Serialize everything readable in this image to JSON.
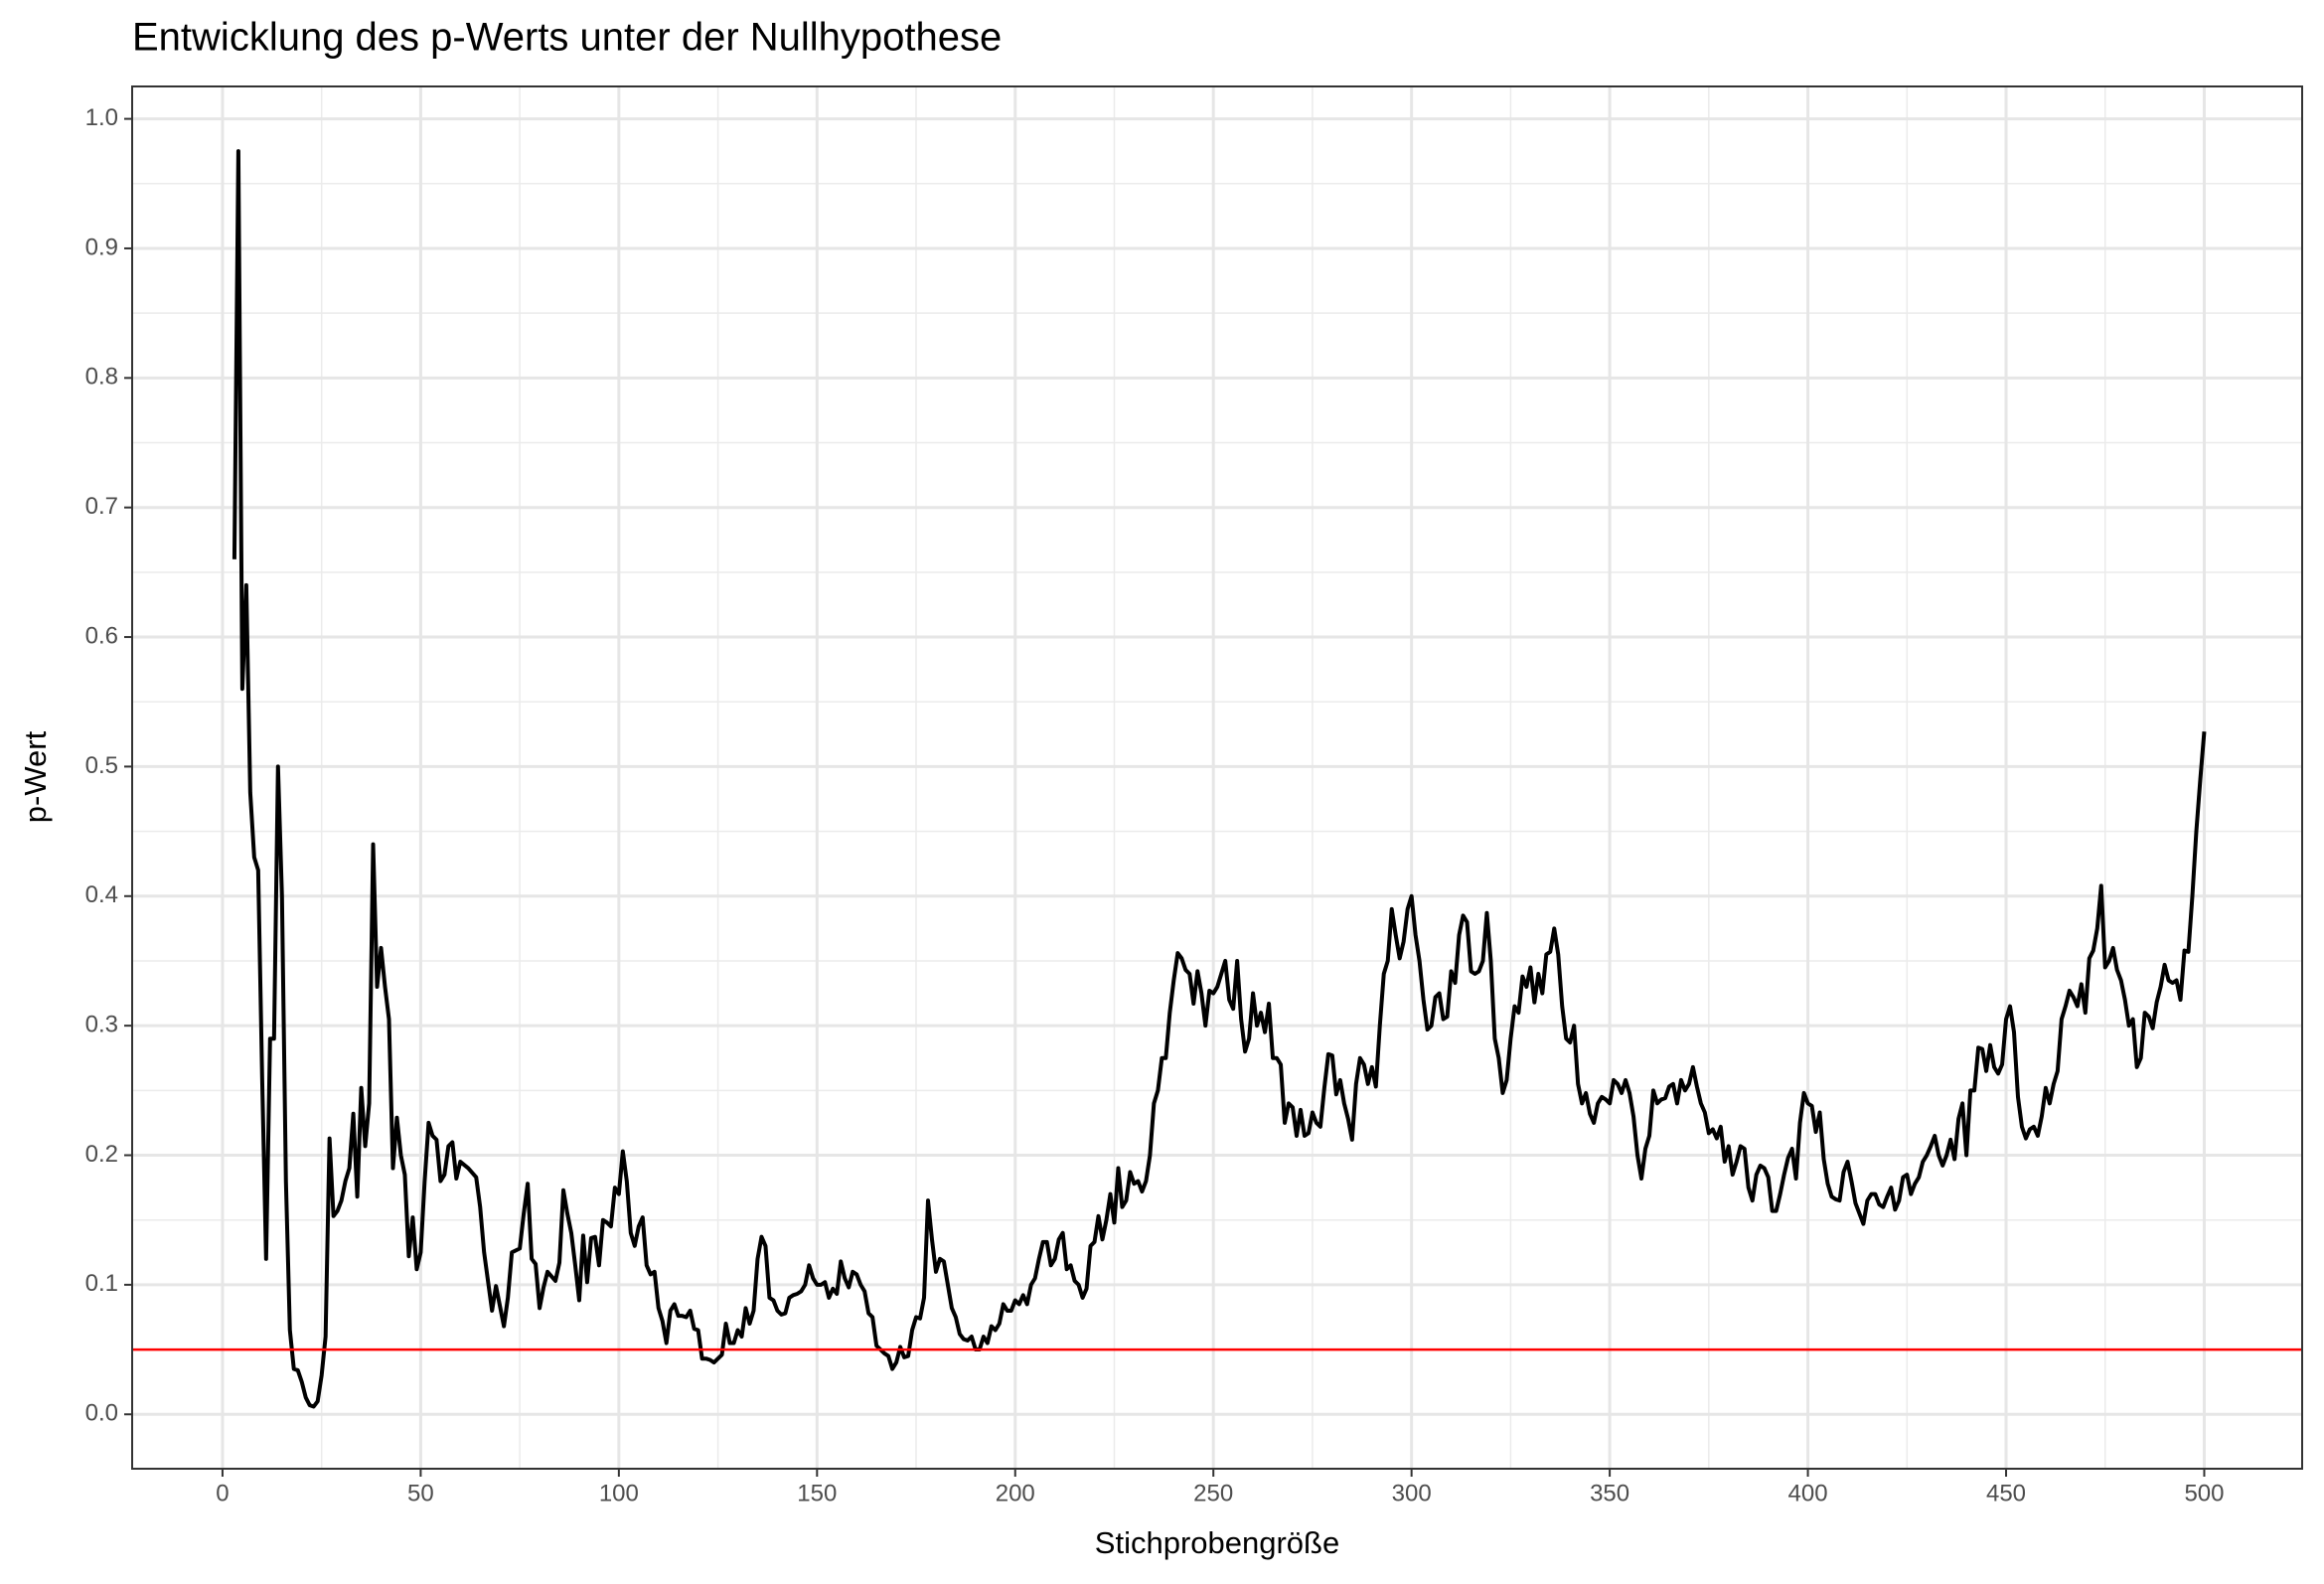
{
  "chart_data": {
    "type": "line",
    "title": "Entwicklung des p-Werts unter der Nullhypothese",
    "x_label": "Stichprobengröße",
    "y_label": "p-Wert",
    "xlim": [
      -22.8,
      524.7
    ],
    "ylim": [
      -0.042,
      1.025
    ],
    "xticks": [
      0,
      50,
      100,
      150,
      200,
      250,
      300,
      350,
      400,
      450,
      500
    ],
    "yticks": [
      {
        "value": 0,
        "label": "0.0"
      },
      0.1,
      0.2,
      0.3,
      0.4,
      0.5,
      0.6,
      0.7,
      0.8,
      0.9,
      {
        "value": 1,
        "label": "1.0"
      }
    ],
    "x_minor_ticks": [
      25,
      75,
      125,
      175,
      225,
      275,
      325,
      375,
      425,
      475
    ],
    "y_minor_ticks": [
      0.05,
      0.15,
      0.25,
      0.35,
      0.45,
      0.55,
      0.65,
      0.75,
      0.85,
      0.95
    ],
    "grid": true,
    "hline": {
      "value": 0.05,
      "color": "#ff0000"
    },
    "x": [
      3,
      4,
      5,
      6,
      7,
      8,
      9,
      10,
      11,
      12,
      13,
      14,
      15,
      16,
      17,
      18,
      19,
      20,
      21,
      22,
      23,
      24,
      25,
      26,
      27,
      28,
      29,
      30,
      31,
      32,
      33,
      34,
      35,
      36,
      37,
      38,
      39,
      40,
      41,
      42,
      43,
      44,
      45,
      46,
      47,
      48,
      49,
      50,
      51,
      52,
      53,
      54,
      55,
      56,
      57,
      58,
      59,
      60,
      62,
      64,
      65,
      66,
      68,
      69,
      71,
      72,
      73,
      75,
      76,
      77,
      78,
      79,
      80,
      81,
      82,
      84,
      85,
      86,
      87,
      88,
      89,
      90,
      91,
      92,
      93,
      94,
      95,
      96,
      97,
      98,
      99,
      100,
      101,
      102,
      103,
      104,
      105,
      106,
      107,
      108,
      109,
      110,
      111,
      112,
      113,
      114,
      115,
      116,
      117,
      118,
      119,
      120,
      121,
      122,
      123,
      124,
      125,
      126,
      127,
      128,
      129,
      130,
      131,
      132,
      133,
      134,
      135,
      136,
      137,
      138,
      139,
      140,
      141,
      142,
      143,
      144,
      145,
      146,
      147,
      148,
      149,
      150,
      151,
      152,
      153,
      154,
      155,
      156,
      157,
      158,
      159,
      160,
      161,
      162,
      163,
      164,
      165,
      166,
      167,
      168,
      169,
      170,
      171,
      172,
      173,
      174,
      175,
      176,
      177,
      178,
      179,
      180,
      181,
      182,
      183,
      184,
      185,
      186,
      187,
      188,
      189,
      190,
      191,
      192,
      193,
      194,
      195,
      196,
      197,
      198,
      199,
      200,
      201,
      202,
      203,
      204,
      205,
      206,
      207,
      208,
      209,
      210,
      211,
      212,
      213,
      214,
      215,
      216,
      217,
      218,
      219,
      220,
      221,
      222,
      223,
      224,
      225,
      226,
      227,
      228,
      229,
      230,
      231,
      232,
      233,
      234,
      235,
      236,
      237,
      238,
      239,
      240,
      241,
      242,
      243,
      244,
      245,
      246,
      247,
      248,
      249,
      250,
      251,
      252,
      253,
      254,
      255,
      256,
      257,
      258,
      259,
      260,
      261,
      262,
      263,
      264,
      265,
      266,
      267,
      268,
      269,
      270,
      271,
      272,
      273,
      274,
      275,
      276,
      277,
      278,
      279,
      280,
      281,
      282,
      283,
      284,
      285,
      286,
      287,
      288,
      289,
      290,
      291,
      292,
      293,
      294,
      295,
      296,
      297,
      298,
      299,
      300,
      301,
      302,
      303,
      304,
      305,
      306,
      307,
      308,
      309,
      310,
      311,
      312,
      313,
      314,
      315,
      316,
      317,
      318,
      319,
      320,
      321,
      322,
      323,
      324,
      325,
      326,
      327,
      328,
      329,
      330,
      331,
      332,
      333,
      334,
      335,
      336,
      337,
      338,
      339,
      340,
      341,
      342,
      343,
      344,
      345,
      346,
      347,
      348,
      349,
      350,
      351,
      352,
      353,
      354,
      355,
      356,
      357,
      358,
      359,
      360,
      361,
      362,
      363,
      364,
      365,
      366,
      367,
      368,
      369,
      370,
      371,
      372,
      373,
      374,
      375,
      376,
      377,
      378,
      379,
      380,
      381,
      382,
      383,
      384,
      385,
      386,
      387,
      388,
      389,
      390,
      391,
      392,
      393,
      394,
      395,
      396,
      397,
      398,
      399,
      400,
      401,
      402,
      403,
      404,
      405,
      406,
      407,
      408,
      409,
      410,
      411,
      412,
      413,
      414,
      415,
      416,
      417,
      418,
      419,
      420,
      421,
      422,
      423,
      424,
      425,
      426,
      427,
      428,
      429,
      430,
      431,
      432,
      433,
      434,
      435,
      436,
      437,
      438,
      439,
      440,
      441,
      442,
      443,
      444,
      445,
      446,
      447,
      448,
      449,
      450,
      451,
      452,
      453,
      454,
      455,
      456,
      457,
      458,
      459,
      460,
      461,
      462,
      463,
      464,
      465,
      466,
      467,
      468,
      469,
      470,
      471,
      472,
      473,
      474,
      475,
      476,
      477,
      478,
      479,
      480,
      481,
      482,
      483,
      484,
      485,
      486,
      487,
      488,
      489,
      490,
      491,
      492,
      493,
      494,
      495,
      496,
      497,
      498,
      499,
      500
    ],
    "series": [
      {
        "color": "#000000",
        "values": [
          0.66,
          0.975,
          0.56,
          0.64,
          0.48,
          0.43,
          0.42,
          0.26,
          0.12,
          0.29,
          0.29,
          0.5,
          0.4,
          0.18,
          0.065,
          0.035,
          0.034,
          0.025,
          0.013,
          0.007,
          0.006,
          0.01,
          0.03,
          0.06,
          0.213,
          0.153,
          0.157,
          0.165,
          0.18,
          0.19,
          0.232,
          0.168,
          0.252,
          0.207,
          0.24,
          0.44,
          0.33,
          0.36,
          0.33,
          0.305,
          0.19,
          0.229,
          0.2,
          0.185,
          0.122,
          0.152,
          0.112,
          0.125,
          0.18,
          0.225,
          0.215,
          0.212,
          0.18,
          0.185,
          0.207,
          0.21,
          0.182,
          0.195,
          0.19,
          0.183,
          0.16,
          0.125,
          0.08,
          0.099,
          0.068,
          0.09,
          0.125,
          0.128,
          0.155,
          0.178,
          0.12,
          0.116,
          0.082,
          0.098,
          0.11,
          0.103,
          0.117,
          0.173,
          0.155,
          0.14,
          0.115,
          0.088,
          0.138,
          0.102,
          0.136,
          0.137,
          0.115,
          0.15,
          0.148,
          0.145,
          0.175,
          0.17,
          0.203,
          0.18,
          0.14,
          0.13,
          0.145,
          0.152,
          0.115,
          0.108,
          0.11,
          0.082,
          0.072,
          0.055,
          0.08,
          0.085,
          0.076,
          0.076,
          0.075,
          0.08,
          0.066,
          0.065,
          0.043,
          0.043,
          0.042,
          0.04,
          0.043,
          0.046,
          0.07,
          0.055,
          0.055,
          0.065,
          0.06,
          0.082,
          0.07,
          0.08,
          0.12,
          0.137,
          0.13,
          0.09,
          0.088,
          0.08,
          0.077,
          0.078,
          0.09,
          0.092,
          0.093,
          0.095,
          0.1,
          0.115,
          0.105,
          0.1,
          0.1,
          0.102,
          0.09,
          0.097,
          0.093,
          0.118,
          0.105,
          0.098,
          0.11,
          0.108,
          0.1,
          0.095,
          0.078,
          0.075,
          0.053,
          0.05,
          0.047,
          0.045,
          0.035,
          0.04,
          0.052,
          0.044,
          0.045,
          0.065,
          0.075,
          0.074,
          0.09,
          0.165,
          0.135,
          0.11,
          0.12,
          0.118,
          0.1,
          0.082,
          0.075,
          0.062,
          0.058,
          0.057,
          0.06,
          0.05,
          0.05,
          0.06,
          0.055,
          0.068,
          0.065,
          0.07,
          0.085,
          0.08,
          0.08,
          0.088,
          0.085,
          0.092,
          0.085,
          0.1,
          0.105,
          0.12,
          0.133,
          0.133,
          0.115,
          0.12,
          0.135,
          0.14,
          0.112,
          0.115,
          0.103,
          0.1,
          0.09,
          0.097,
          0.13,
          0.133,
          0.153,
          0.135,
          0.15,
          0.17,
          0.148,
          0.19,
          0.16,
          0.165,
          0.187,
          0.178,
          0.18,
          0.172,
          0.18,
          0.2,
          0.24,
          0.25,
          0.275,
          0.275,
          0.31,
          0.335,
          0.356,
          0.352,
          0.343,
          0.34,
          0.317,
          0.342,
          0.325,
          0.3,
          0.327,
          0.325,
          0.33,
          0.34,
          0.35,
          0.32,
          0.313,
          0.35,
          0.305,
          0.28,
          0.29,
          0.325,
          0.3,
          0.31,
          0.295,
          0.317,
          0.275,
          0.275,
          0.27,
          0.225,
          0.24,
          0.237,
          0.215,
          0.235,
          0.215,
          0.217,
          0.233,
          0.225,
          0.222,
          0.252,
          0.278,
          0.277,
          0.247,
          0.258,
          0.24,
          0.228,
          0.212,
          0.255,
          0.275,
          0.27,
          0.255,
          0.268,
          0.253,
          0.3,
          0.34,
          0.35,
          0.39,
          0.37,
          0.352,
          0.365,
          0.39,
          0.4,
          0.37,
          0.35,
          0.32,
          0.297,
          0.3,
          0.322,
          0.325,
          0.305,
          0.307,
          0.342,
          0.333,
          0.37,
          0.385,
          0.38,
          0.342,
          0.34,
          0.342,
          0.35,
          0.387,
          0.35,
          0.29,
          0.275,
          0.248,
          0.258,
          0.29,
          0.315,
          0.31,
          0.338,
          0.33,
          0.345,
          0.318,
          0.34,
          0.325,
          0.355,
          0.357,
          0.375,
          0.355,
          0.315,
          0.29,
          0.287,
          0.3,
          0.255,
          0.24,
          0.248,
          0.232,
          0.225,
          0.24,
          0.245,
          0.243,
          0.24,
          0.258,
          0.255,
          0.248,
          0.258,
          0.248,
          0.23,
          0.2,
          0.182,
          0.205,
          0.215,
          0.25,
          0.24,
          0.243,
          0.244,
          0.253,
          0.255,
          0.24,
          0.258,
          0.25,
          0.255,
          0.268,
          0.253,
          0.24,
          0.233,
          0.217,
          0.22,
          0.213,
          0.222,
          0.195,
          0.207,
          0.185,
          0.195,
          0.207,
          0.205,
          0.175,
          0.165,
          0.185,
          0.192,
          0.19,
          0.183,
          0.157,
          0.157,
          0.17,
          0.185,
          0.198,
          0.205,
          0.182,
          0.225,
          0.248,
          0.24,
          0.238,
          0.218,
          0.233,
          0.197,
          0.178,
          0.168,
          0.166,
          0.165,
          0.187,
          0.195,
          0.18,
          0.163,
          0.155,
          0.147,
          0.165,
          0.17,
          0.17,
          0.162,
          0.16,
          0.168,
          0.175,
          0.158,
          0.165,
          0.183,
          0.185,
          0.17,
          0.178,
          0.183,
          0.195,
          0.2,
          0.207,
          0.215,
          0.2,
          0.192,
          0.2,
          0.212,
          0.197,
          0.228,
          0.24,
          0.2,
          0.25,
          0.25,
          0.283,
          0.282,
          0.265,
          0.285,
          0.268,
          0.263,
          0.27,
          0.305,
          0.315,
          0.295,
          0.245,
          0.222,
          0.213,
          0.22,
          0.222,
          0.215,
          0.23,
          0.252,
          0.24,
          0.255,
          0.265,
          0.305,
          0.315,
          0.327,
          0.322,
          0.315,
          0.332,
          0.31,
          0.352,
          0.358,
          0.375,
          0.408,
          0.345,
          0.35,
          0.36,
          0.343,
          0.335,
          0.32,
          0.3,
          0.305,
          0.268,
          0.275,
          0.31,
          0.307,
          0.298,
          0.318,
          0.33,
          0.347,
          0.335,
          0.333,
          0.335,
          0.32,
          0.358,
          0.357,
          0.4,
          0.45,
          0.49,
          0.527
        ]
      }
    ]
  }
}
